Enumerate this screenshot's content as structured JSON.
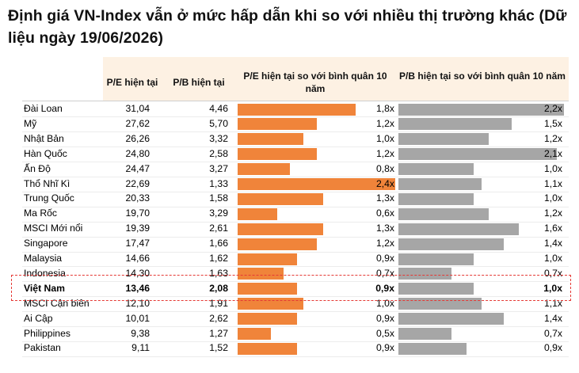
{
  "title": "Định giá VN-Index vẫn ở mức hấp dẫn khi so với nhiều thị trường khác (Dữ liệu ngày 19/06/2026)",
  "colors": {
    "pe_bar": "#f0843a",
    "pb_bar": "#a6a6a6",
    "header_bg": "#fdf1e3",
    "highlight_border": "#e53935"
  },
  "chart_data": {
    "type": "table",
    "title": "Định giá VN-Index vẫn ở mức hấp dẫn khi so với nhiều thị trường khác (Dữ liệu ngày 19/06/2026)",
    "columns": {
      "pe": "P/E hiện tại",
      "pb": "P/B hiện tại",
      "pe_rel": "P/E hiện tại so với bình quân 10 năm",
      "pb_rel": "P/B hiện tại so với bình quân 10 năm"
    },
    "highlighted_row": "Việt Nam",
    "bar_scale_max": {
      "pe_rel": 2.4,
      "pb_rel": 2.2
    },
    "rows": [
      {
        "market": "Đài Loan",
        "pe": "31,04",
        "pb": "4,46",
        "pe_rel": "1,8x",
        "pb_rel": "2,2x",
        "pe_rel_v": 1.8,
        "pb_rel_v": 2.2
      },
      {
        "market": "Mỹ",
        "pe": "27,62",
        "pb": "5,70",
        "pe_rel": "1,2x",
        "pb_rel": "1,5x",
        "pe_rel_v": 1.2,
        "pb_rel_v": 1.5
      },
      {
        "market": "Nhật Bản",
        "pe": "26,26",
        "pb": "3,32",
        "pe_rel": "1,0x",
        "pb_rel": "1,2x",
        "pe_rel_v": 1.0,
        "pb_rel_v": 1.2
      },
      {
        "market": "Hàn Quốc",
        "pe": "24,80",
        "pb": "2,58",
        "pe_rel": "1,2x",
        "pb_rel": "2,1x",
        "pe_rel_v": 1.2,
        "pb_rel_v": 2.1
      },
      {
        "market": "Ấn Độ",
        "pe": "24,47",
        "pb": "3,27",
        "pe_rel": "0,8x",
        "pb_rel": "1,0x",
        "pe_rel_v": 0.8,
        "pb_rel_v": 1.0
      },
      {
        "market": "Thổ Nhĩ Kì",
        "pe": "22,69",
        "pb": "1,33",
        "pe_rel": "2,4x",
        "pb_rel": "1,1x",
        "pe_rel_v": 2.4,
        "pb_rel_v": 1.1
      },
      {
        "market": "Trung Quốc",
        "pe": "20,33",
        "pb": "1,58",
        "pe_rel": "1,3x",
        "pb_rel": "1,0x",
        "pe_rel_v": 1.3,
        "pb_rel_v": 1.0
      },
      {
        "market": "Ma Rốc",
        "pe": "19,70",
        "pb": "3,29",
        "pe_rel": "0,6x",
        "pb_rel": "1,2x",
        "pe_rel_v": 0.6,
        "pb_rel_v": 1.2
      },
      {
        "market": "MSCI Mới nổi",
        "pe": "19,39",
        "pb": "2,61",
        "pe_rel": "1,3x",
        "pb_rel": "1,6x",
        "pe_rel_v": 1.3,
        "pb_rel_v": 1.6
      },
      {
        "market": "Singapore",
        "pe": "17,47",
        "pb": "1,66",
        "pe_rel": "1,2x",
        "pb_rel": "1,4x",
        "pe_rel_v": 1.2,
        "pb_rel_v": 1.4
      },
      {
        "market": "Malaysia",
        "pe": "14,66",
        "pb": "1,62",
        "pe_rel": "0,9x",
        "pb_rel": "1,0x",
        "pe_rel_v": 0.9,
        "pb_rel_v": 1.0
      },
      {
        "market": "Indonesia",
        "pe": "14,30",
        "pb": "1,63",
        "pe_rel": "0,7x",
        "pb_rel": "0,7x",
        "pe_rel_v": 0.7,
        "pb_rel_v": 0.7
      },
      {
        "market": "Việt Nam",
        "pe": "13,46",
        "pb": "2,08",
        "pe_rel": "0,9x",
        "pb_rel": "1,0x",
        "pe_rel_v": 0.9,
        "pb_rel_v": 1.0
      },
      {
        "market": "MSCI Cận biên",
        "pe": "12,10",
        "pb": "1,91",
        "pe_rel": "1,0x",
        "pb_rel": "1,1x",
        "pe_rel_v": 1.0,
        "pb_rel_v": 1.1
      },
      {
        "market": "Ai Cập",
        "pe": "10,01",
        "pb": "2,62",
        "pe_rel": "0,9x",
        "pb_rel": "1,4x",
        "pe_rel_v": 0.9,
        "pb_rel_v": 1.4
      },
      {
        "market": "Philippines",
        "pe": "9,38",
        "pb": "1,27",
        "pe_rel": "0,5x",
        "pb_rel": "0,7x",
        "pe_rel_v": 0.5,
        "pb_rel_v": 0.7
      },
      {
        "market": "Pakistan",
        "pe": "9,11",
        "pb": "1,52",
        "pe_rel": "0,9x",
        "pb_rel": "0,9x",
        "pe_rel_v": 0.9,
        "pb_rel_v": 0.9
      }
    ]
  }
}
